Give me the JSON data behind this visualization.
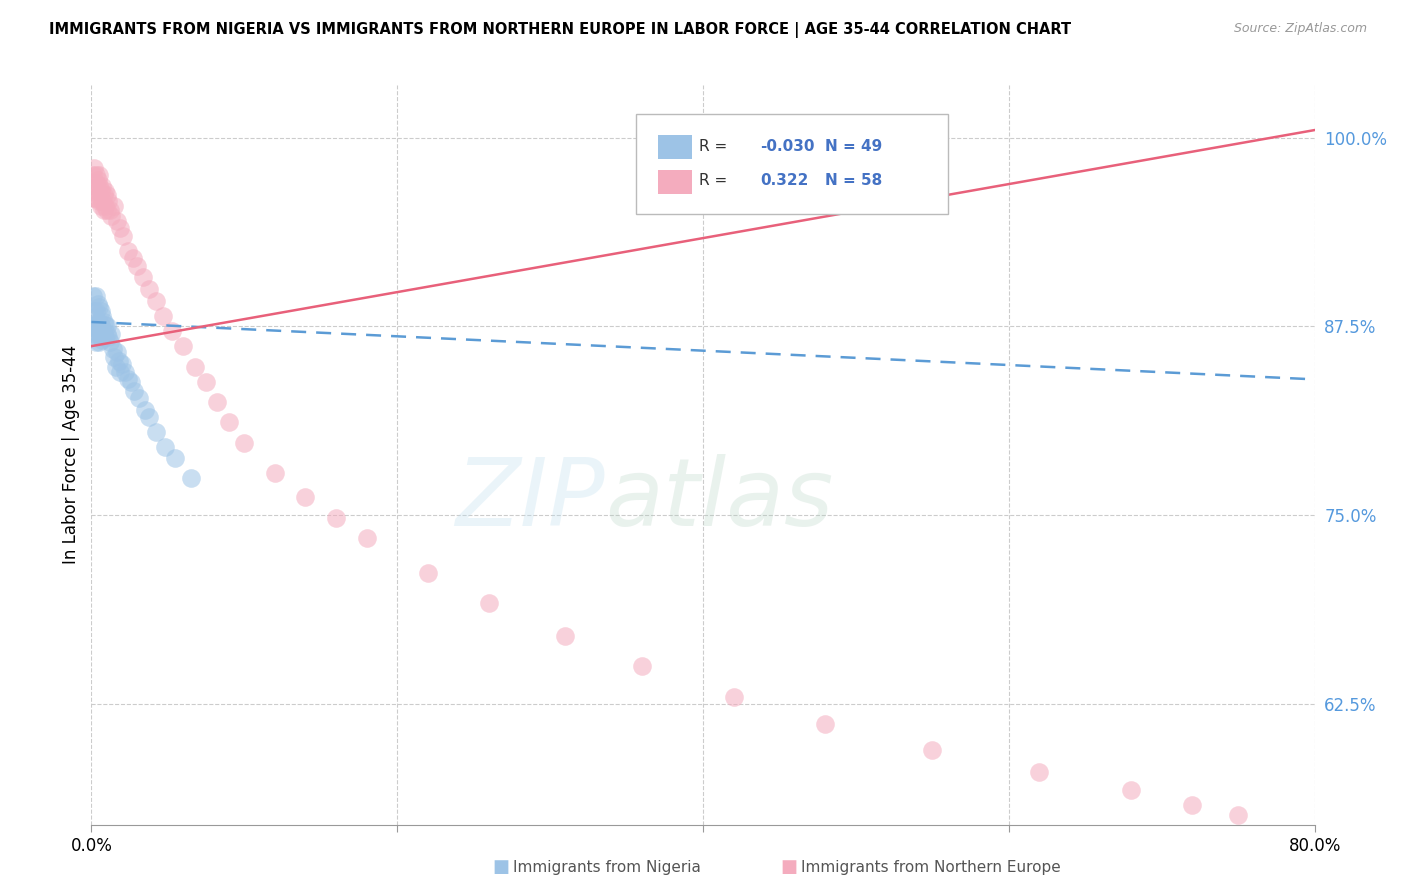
{
  "title": "IMMIGRANTS FROM NIGERIA VS IMMIGRANTS FROM NORTHERN EUROPE IN LABOR FORCE | AGE 35-44 CORRELATION CHART",
  "source": "Source: ZipAtlas.com",
  "ylabel": "In Labor Force | Age 35-44",
  "ylabel_ticks": [
    "62.5%",
    "75.0%",
    "87.5%",
    "100.0%"
  ],
  "ylabel_tick_vals": [
    0.625,
    0.75,
    0.875,
    1.0
  ],
  "xlim": [
    0.0,
    0.8
  ],
  "ylim": [
    0.545,
    1.035
  ],
  "legend_r_nigeria": "-0.030",
  "legend_n_nigeria": "49",
  "legend_r_northern": "0.322",
  "legend_n_northern": "58",
  "color_nigeria": "#9DC3E6",
  "color_northern": "#F4ACBE",
  "color_nigeria_line": "#5B9BD5",
  "color_northern_line": "#E8607A",
  "watermark_zip": "ZIP",
  "watermark_atlas": "atlas",
  "nigeria_x": [
    0.001,
    0.001,
    0.002,
    0.002,
    0.002,
    0.003,
    0.003,
    0.003,
    0.003,
    0.004,
    0.004,
    0.004,
    0.005,
    0.005,
    0.005,
    0.005,
    0.006,
    0.006,
    0.006,
    0.007,
    0.007,
    0.007,
    0.008,
    0.008,
    0.009,
    0.009,
    0.01,
    0.01,
    0.011,
    0.012,
    0.013,
    0.014,
    0.015,
    0.016,
    0.017,
    0.018,
    0.019,
    0.02,
    0.022,
    0.024,
    0.026,
    0.028,
    0.031,
    0.035,
    0.038,
    0.042,
    0.048,
    0.055,
    0.065
  ],
  "nigeria_y": [
    0.895,
    0.875,
    0.885,
    0.875,
    0.87,
    0.895,
    0.885,
    0.875,
    0.865,
    0.89,
    0.878,
    0.87,
    0.888,
    0.878,
    0.872,
    0.865,
    0.885,
    0.875,
    0.868,
    0.882,
    0.874,
    0.866,
    0.878,
    0.87,
    0.876,
    0.868,
    0.875,
    0.87,
    0.868,
    0.865,
    0.87,
    0.86,
    0.855,
    0.848,
    0.858,
    0.852,
    0.845,
    0.85,
    0.845,
    0.84,
    0.838,
    0.832,
    0.828,
    0.82,
    0.815,
    0.805,
    0.795,
    0.788,
    0.775
  ],
  "northern_x": [
    0.001,
    0.001,
    0.002,
    0.002,
    0.003,
    0.003,
    0.003,
    0.004,
    0.004,
    0.005,
    0.005,
    0.005,
    0.006,
    0.006,
    0.007,
    0.007,
    0.008,
    0.008,
    0.009,
    0.009,
    0.01,
    0.01,
    0.011,
    0.012,
    0.013,
    0.015,
    0.017,
    0.019,
    0.021,
    0.024,
    0.027,
    0.03,
    0.034,
    0.038,
    0.042,
    0.047,
    0.053,
    0.06,
    0.068,
    0.075,
    0.082,
    0.09,
    0.1,
    0.12,
    0.14,
    0.16,
    0.18,
    0.22,
    0.26,
    0.31,
    0.36,
    0.42,
    0.48,
    0.55,
    0.62,
    0.68,
    0.72,
    0.75
  ],
  "northern_y": [
    0.96,
    0.975,
    0.965,
    0.98,
    0.97,
    0.975,
    0.96,
    0.972,
    0.965,
    0.968,
    0.958,
    0.975,
    0.965,
    0.955,
    0.968,
    0.958,
    0.962,
    0.952,
    0.965,
    0.955,
    0.962,
    0.952,
    0.958,
    0.952,
    0.948,
    0.955,
    0.945,
    0.94,
    0.935,
    0.925,
    0.92,
    0.915,
    0.908,
    0.9,
    0.892,
    0.882,
    0.872,
    0.862,
    0.848,
    0.838,
    0.825,
    0.812,
    0.798,
    0.778,
    0.762,
    0.748,
    0.735,
    0.712,
    0.692,
    0.67,
    0.65,
    0.63,
    0.612,
    0.595,
    0.58,
    0.568,
    0.558,
    0.552
  ],
  "nigeria_trend_x": [
    0.0,
    0.8
  ],
  "nigeria_trend_y": [
    0.878,
    0.84
  ],
  "northern_trend_x": [
    0.0,
    0.8
  ],
  "northern_trend_y": [
    0.862,
    1.005
  ]
}
